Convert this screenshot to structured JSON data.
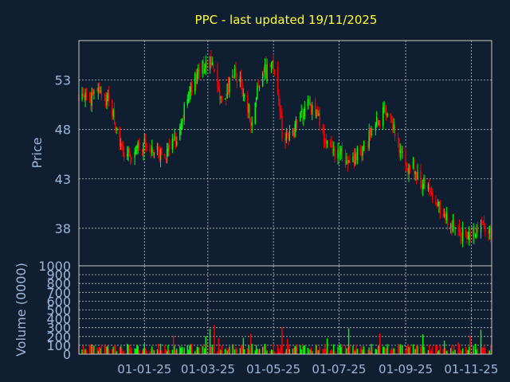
{
  "chart_data": {
    "type": "candlestick",
    "title": "PPC - last updated 19/11/2025",
    "price_panel": {
      "ylabel": "Price",
      "yticks": [
        38,
        43,
        48,
        53
      ],
      "ylim": [
        34.2,
        57.0
      ]
    },
    "volume_panel": {
      "ylabel": "Volume (0000)",
      "yticks": [
        0,
        100,
        200,
        300,
        400,
        500,
        600,
        700,
        800,
        900,
        1000
      ],
      "ylim": [
        0,
        1000
      ]
    },
    "xticks": [
      "01-01-25",
      "01-03-25",
      "01-05-25",
      "01-07-25",
      "01-09-25",
      "01-11-25"
    ],
    "xlim": [
      "2024-11-01",
      "2025-11-20"
    ],
    "grid": true,
    "colors": {
      "background": "#0f1e30",
      "up": "#00ff00",
      "down": "#ff0000",
      "grid": "#c8c8c8",
      "title": "#ffff33",
      "axis_text": "#9db8d8"
    },
    "price_path": [
      [
        "2024-11-01",
        51.5
      ],
      [
        "2024-11-10",
        51.0
      ],
      [
        "2024-11-20",
        51.8
      ],
      [
        "2024-12-01",
        50.5
      ],
      [
        "2024-12-05",
        48.5
      ],
      [
        "2024-12-10",
        46.0
      ],
      [
        "2024-12-20",
        45.5
      ],
      [
        "2025-01-01",
        46.5
      ],
      [
        "2025-01-10",
        46.0
      ],
      [
        "2025-01-20",
        45.0
      ],
      [
        "2025-01-31",
        47.5
      ],
      [
        "2025-02-10",
        51.0
      ],
      [
        "2025-02-20",
        54.0
      ],
      [
        "2025-03-01",
        54.5
      ],
      [
        "2025-03-05",
        55.0
      ],
      [
        "2025-03-15",
        50.5
      ],
      [
        "2025-03-25",
        54.0
      ],
      [
        "2025-04-05",
        51.5
      ],
      [
        "2025-04-10",
        49.0
      ],
      [
        "2025-04-20",
        53.5
      ],
      [
        "2025-05-01",
        54.5
      ],
      [
        "2025-05-05",
        52.0
      ],
      [
        "2025-05-10",
        46.5
      ],
      [
        "2025-05-20",
        48.0
      ],
      [
        "2025-05-31",
        50.5
      ],
      [
        "2025-06-10",
        49.5
      ],
      [
        "2025-06-20",
        46.5
      ],
      [
        "2025-07-01",
        45.5
      ],
      [
        "2025-07-10",
        45.0
      ],
      [
        "2025-07-20",
        45.5
      ],
      [
        "2025-07-31",
        47.5
      ],
      [
        "2025-08-10",
        49.5
      ],
      [
        "2025-08-15",
        50.0
      ],
      [
        "2025-08-25",
        47.0
      ],
      [
        "2025-09-01",
        44.5
      ],
      [
        "2025-09-10",
        44.0
      ],
      [
        "2025-09-20",
        42.0
      ],
      [
        "2025-10-01",
        40.5
      ],
      [
        "2025-10-10",
        38.5
      ],
      [
        "2025-10-20",
        37.5
      ],
      [
        "2025-11-01",
        37.5
      ],
      [
        "2025-11-10",
        38.0
      ],
      [
        "2025-11-19",
        37.5
      ]
    ]
  }
}
